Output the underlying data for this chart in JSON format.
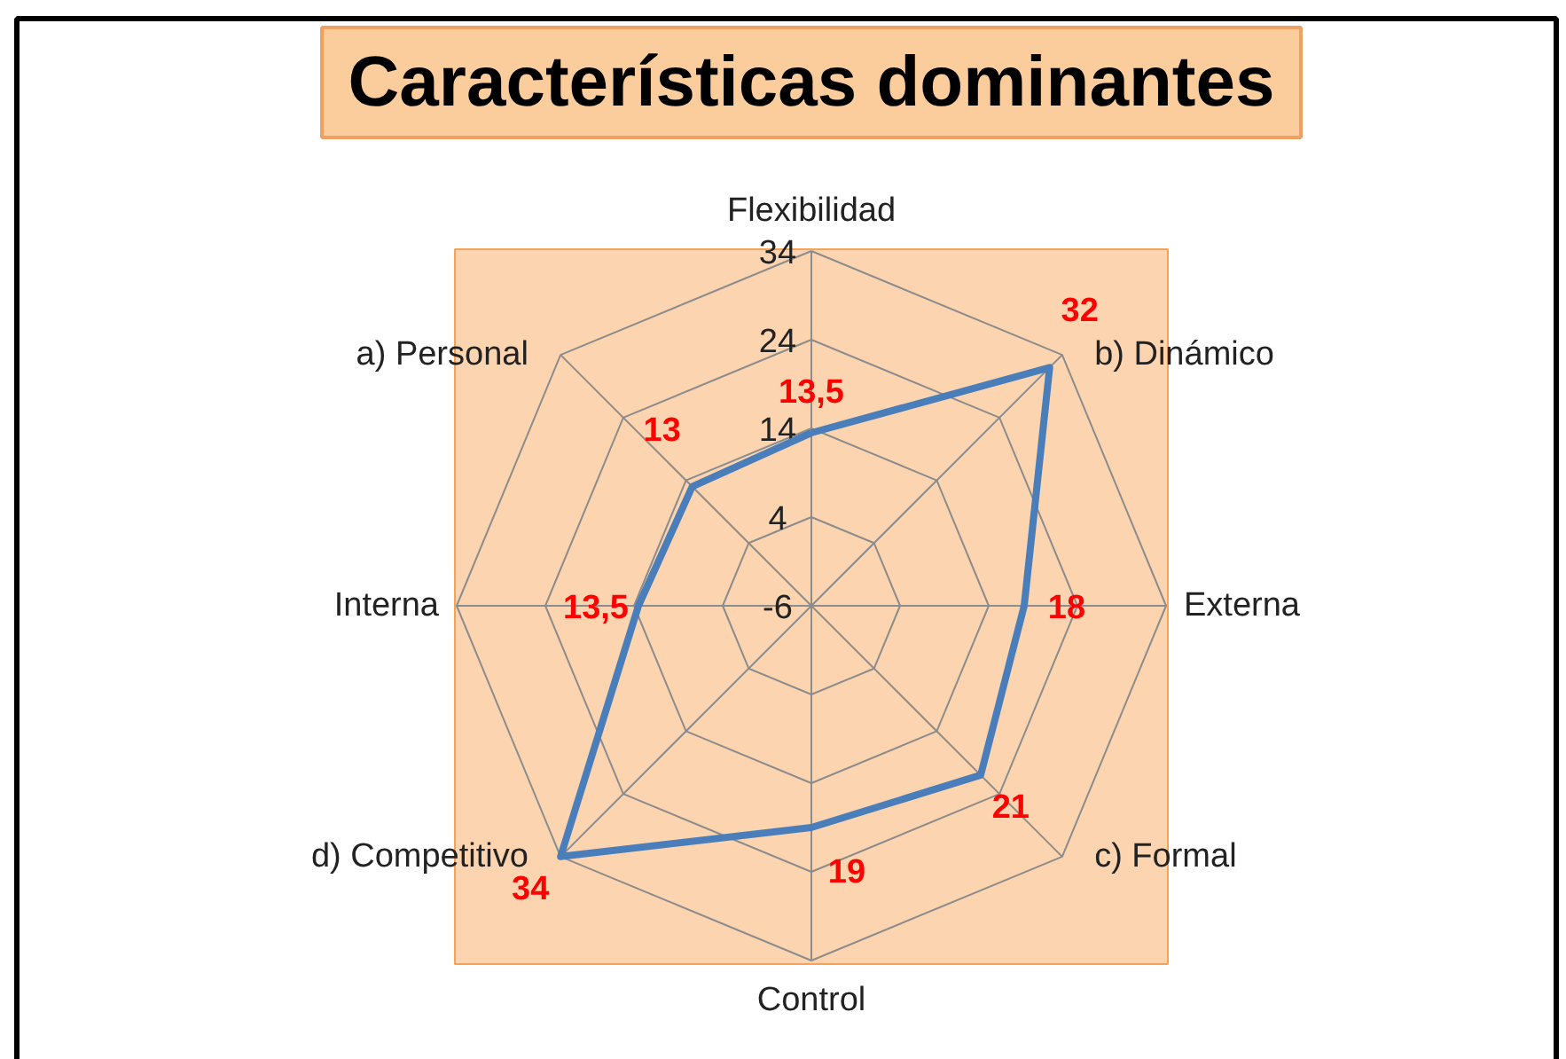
{
  "chart_data": {
    "type": "radar",
    "title": "Características dominantes",
    "categories": [
      "Flexibilidad",
      "b) Dinámico",
      "Externa",
      "c) Formal",
      "Control",
      "d) Competitivo",
      "Interna",
      "a) Personal"
    ],
    "series": [
      {
        "color": "#4a7ebb",
        "values": [
          13.5,
          32,
          18,
          21,
          19,
          34,
          13.5,
          13
        ],
        "value_labels": [
          "13,5",
          "32",
          "18",
          "21",
          "19",
          "34",
          "13,5",
          "13"
        ]
      }
    ],
    "ylim": [
      -6,
      34
    ],
    "yticks": [
      -6,
      4,
      14,
      24,
      34
    ],
    "grid": true
  }
}
